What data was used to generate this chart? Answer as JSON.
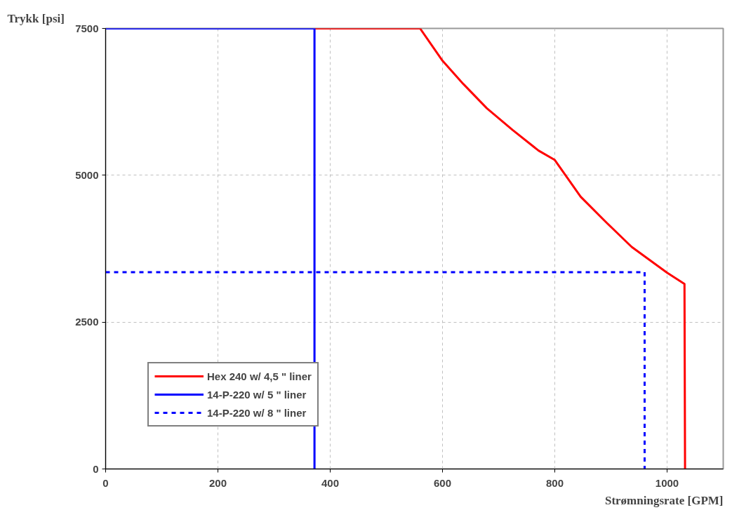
{
  "chart_data": {
    "type": "line",
    "xlabel": "Strømningsrate [GPM]",
    "ylabel": "Trykk [psi]",
    "xlim": [
      0,
      1100
    ],
    "xticks": [
      0,
      200,
      400,
      600,
      800,
      1000
    ],
    "ylim": [
      0,
      7500
    ],
    "yticks": [
      0,
      2500,
      5000,
      7500
    ],
    "grid": true,
    "legend": "bottom left",
    "series": [
      {
        "name": "Hex 240 w/ 4,5 \" liner",
        "color": "#ff0000",
        "line_style": "solid",
        "x": [
          372,
          560,
          600,
          637,
          679,
          725,
          771,
          800,
          846,
          892,
          937,
          1000,
          1031,
          1032
        ],
        "values": [
          7500,
          7500,
          6950,
          6555,
          6140,
          5770,
          5420,
          5260,
          4635,
          4195,
          3780,
          3340,
          3150,
          0
        ]
      },
      {
        "name": "14-P-220 w/ 5 \" liner",
        "color": "#0000ff",
        "line_style": "solid",
        "x": [
          0,
          372,
          372
        ],
        "values": [
          7500,
          7500,
          0
        ]
      },
      {
        "name": "14-P-220 w/ 8 \" liner",
        "color": "#0000ff",
        "line_style": "dashed",
        "x": [
          0,
          960,
          960
        ],
        "values": [
          3350,
          3350,
          0
        ]
      }
    ]
  }
}
